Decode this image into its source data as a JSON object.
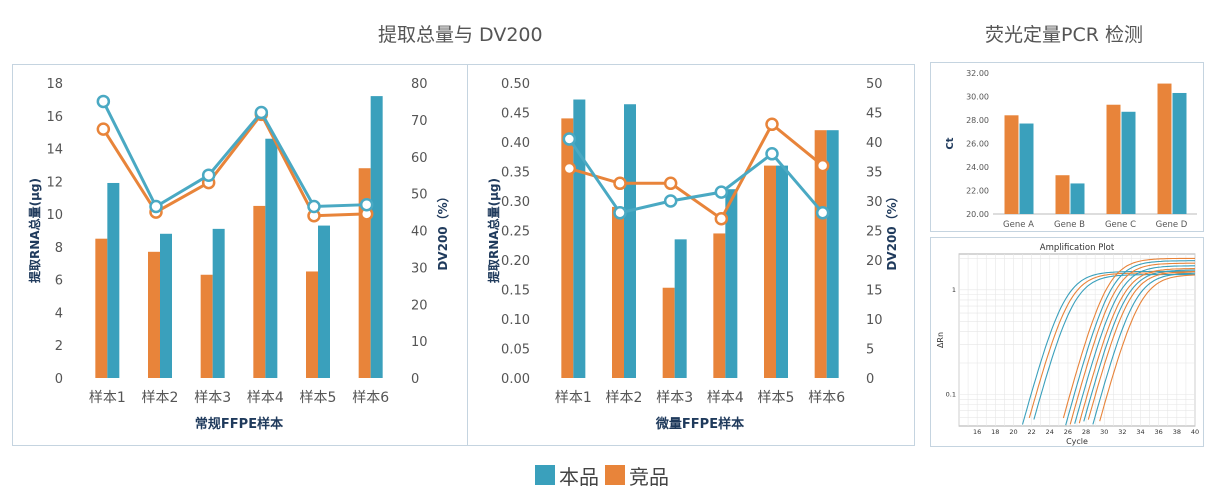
{
  "titles": {
    "main": "提取总量与 DV200",
    "pcr": "荧光定量PCR 检测"
  },
  "legend": {
    "items": [
      {
        "label": "本品",
        "color": "#3aa0bc"
      },
      {
        "label": "竞品",
        "color": "#e8843a"
      }
    ]
  },
  "colors": {
    "ours": "#3aa0bc",
    "ours_line": "#4aa9c3",
    "theirs": "#e8843a",
    "axis_text": "#555555",
    "axis_title": "#1f3a5c"
  },
  "chart_data": [
    {
      "type": "bar",
      "xlabel": "常规FFPE样本",
      "ylabel": "提取RNA总量(μg)",
      "y2label": "DV200（%）",
      "categories": [
        "样本1",
        "样本2",
        "样本3",
        "样本4",
        "样本5",
        "样本6"
      ],
      "ylim": [
        0,
        18
      ],
      "yticks": [
        "0",
        "2",
        "4",
        "6",
        "8",
        "10",
        "12",
        "14",
        "16",
        "18"
      ],
      "y2lim": [
        0,
        80
      ],
      "y2ticks": [
        "0",
        "10",
        "20",
        "30",
        "40",
        "50",
        "60",
        "70",
        "80"
      ],
      "series": [
        {
          "name": "本品",
          "kind": "bar",
          "values": [
            11.9,
            8.8,
            9.1,
            14.6,
            9.3,
            17.2
          ]
        },
        {
          "name": "竞品",
          "kind": "bar",
          "values": [
            8.5,
            7.7,
            6.3,
            10.5,
            6.5,
            12.8
          ]
        },
        {
          "name": "本品",
          "kind": "line",
          "axis": "y2",
          "values": [
            75,
            46.5,
            55,
            72,
            46.5,
            47
          ]
        },
        {
          "name": "竞品",
          "kind": "line",
          "axis": "y2",
          "values": [
            67.5,
            45,
            53,
            71.5,
            44,
            44.5
          ]
        }
      ]
    },
    {
      "type": "bar",
      "xlabel": "微量FFPE样本",
      "ylabel": "提取RNA总量(μg)",
      "y2label": "DV200（%）",
      "categories": [
        "样本1",
        "样本2",
        "样本3",
        "样本4",
        "样本5",
        "样本6"
      ],
      "ylim": [
        0,
        0.5
      ],
      "yticks": [
        "0.00",
        "0.05",
        "0.10",
        "0.15",
        "0.20",
        "0.25",
        "0.30",
        "0.35",
        "0.40",
        "0.45",
        "0.50"
      ],
      "y2lim": [
        0,
        50
      ],
      "y2ticks": [
        "0",
        "5",
        "10",
        "15",
        "20",
        "25",
        "30",
        "35",
        "40",
        "45",
        "50"
      ],
      "series": [
        {
          "name": "本品",
          "kind": "bar",
          "values": [
            0.472,
            0.464,
            0.235,
            0.32,
            0.36,
            0.42
          ]
        },
        {
          "name": "竞品",
          "kind": "bar",
          "values": [
            0.44,
            0.29,
            0.153,
            0.245,
            0.36,
            0.42
          ]
        },
        {
          "name": "本品",
          "kind": "line",
          "axis": "y2",
          "values": [
            40.5,
            28,
            30,
            31.5,
            38,
            28
          ]
        },
        {
          "name": "竞品",
          "kind": "line",
          "axis": "y2",
          "values": [
            35.5,
            33,
            33,
            27,
            43,
            36
          ]
        }
      ]
    },
    {
      "type": "bar",
      "ylabel": "Ct",
      "categories": [
        "Gene A",
        "Gene B",
        "Gene C",
        "Gene D"
      ],
      "ylim": [
        20,
        32
      ],
      "yticks": [
        "20.00",
        "22.00",
        "24.00",
        "26.00",
        "28.00",
        "30.00",
        "32.00"
      ],
      "series": [
        {
          "name": "竞品",
          "values": [
            28.4,
            23.3,
            29.3,
            31.1
          ]
        },
        {
          "name": "本品",
          "values": [
            27.7,
            22.6,
            28.7,
            30.3
          ]
        }
      ]
    },
    {
      "type": "line",
      "title": "Amplification Plot",
      "xlabel": "Cycle",
      "ylabel": "ΔRn",
      "xlim": [
        14,
        40
      ],
      "xticks": [
        "16",
        "18",
        "20",
        "22",
        "24",
        "26",
        "28",
        "30",
        "32",
        "34",
        "36",
        "38",
        "40"
      ],
      "yscale": "log",
      "ylim": [
        0.05,
        2.2
      ],
      "yticks": [
        "0.1",
        "1"
      ],
      "curves": [
        {
          "color": "#3aa0bc",
          "midpoint": 25.5,
          "plateau": 1.5
        },
        {
          "color": "#e8843a",
          "midpoint": 26.0,
          "plateau": 1.45
        },
        {
          "color": "#3aa0bc",
          "midpoint": 26.5,
          "plateau": 1.4
        },
        {
          "color": "#e8843a",
          "midpoint": 30.2,
          "plateau": 2.0
        },
        {
          "color": "#3aa0bc",
          "midpoint": 30.6,
          "plateau": 1.9
        },
        {
          "color": "#e8843a",
          "midpoint": 31.0,
          "plateau": 1.8
        },
        {
          "color": "#3aa0bc",
          "midpoint": 31.4,
          "plateau": 1.7
        },
        {
          "color": "#e8843a",
          "midpoint": 31.8,
          "plateau": 1.6
        },
        {
          "color": "#3aa0bc",
          "midpoint": 32.2,
          "plateau": 1.55
        },
        {
          "color": "#e8843a",
          "midpoint": 32.6,
          "plateau": 1.5
        },
        {
          "color": "#3aa0bc",
          "midpoint": 33.2,
          "plateau": 1.45
        },
        {
          "color": "#e8843a",
          "midpoint": 33.8,
          "plateau": 1.4
        }
      ]
    }
  ]
}
